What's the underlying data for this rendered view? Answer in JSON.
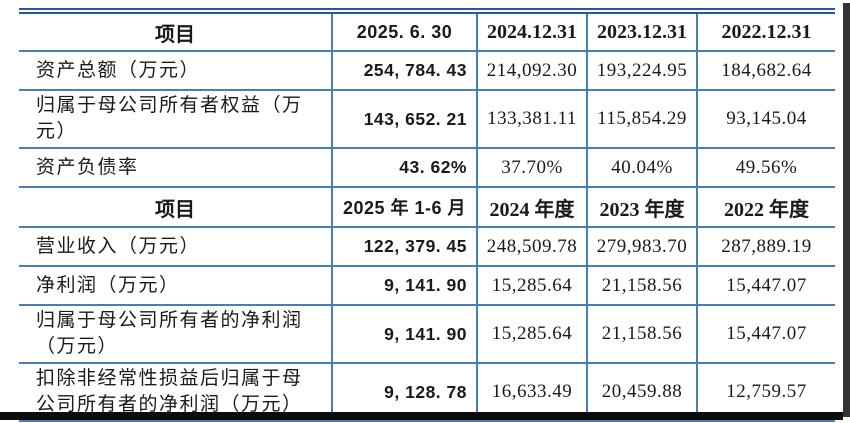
{
  "table": {
    "colors": {
      "grid_blue": "#4a7cb8",
      "top_rule_blue": "#2a5795",
      "text": "#1a1a1a",
      "bottom_bar": "#0d0d0d"
    },
    "sections": [
      {
        "header": {
          "item_label": "项目",
          "cols": [
            "2025. 6. 30",
            "2024.12.31",
            "2023.12.31",
            "2022.12.31"
          ]
        },
        "rows": [
          {
            "label": "资产总额（万元）",
            "values": [
              "254, 784. 43",
              "214,092.30",
              "193,224.95",
              "184,682.64"
            ]
          },
          {
            "label": "归属于母公司所有者权益（万元）",
            "values": [
              "143, 652. 21",
              "133,381.11",
              "115,854.29",
              "93,145.04"
            ]
          },
          {
            "label": "资产负债率",
            "values": [
              "43. 62%",
              "37.70%",
              "40.04%",
              "49.56%"
            ]
          }
        ]
      },
      {
        "header": {
          "item_label": "项目",
          "cols": [
            "2025 年 1-6 月",
            "2024 年度",
            "2023 年度",
            "2022 年度"
          ]
        },
        "rows": [
          {
            "label": "营业收入（万元）",
            "values": [
              "122, 379. 45",
              "248,509.78",
              "279,983.70",
              "287,889.19"
            ]
          },
          {
            "label": "净利润（万元）",
            "values": [
              "9, 141. 90",
              "15,285.64",
              "21,158.56",
              "15,447.07"
            ]
          },
          {
            "label": "归属于母公司所有者的净利润（万元）",
            "values": [
              "9, 141. 90",
              "15,285.64",
              "21,158.56",
              "15,447.07"
            ]
          },
          {
            "label": "扣除非经常性损益后归属于母公司所有者的净利润（万元）",
            "values": [
              "9, 128. 78",
              "16,633.49",
              "20,459.88",
              "12,759.57"
            ]
          }
        ]
      }
    ]
  }
}
